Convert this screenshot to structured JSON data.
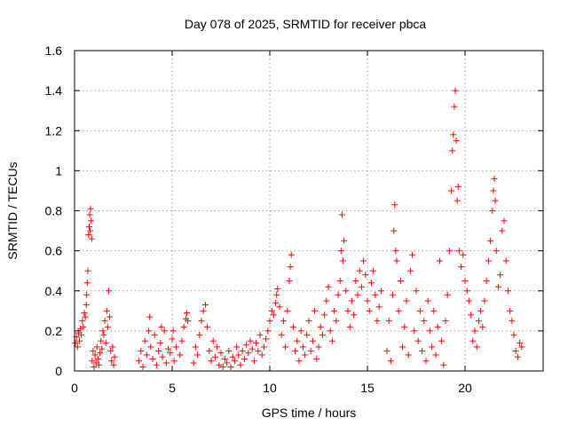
{
  "chart_data": {
    "type": "scatter",
    "title": "Day 078 of 2025, SRMTID for receiver pbca",
    "xlabel": "GPS time / hours",
    "ylabel": "SRMTID / TECUs",
    "xlim": [
      0,
      24
    ],
    "ylim": [
      0,
      1.6
    ],
    "x_ticks": [
      0,
      5,
      10,
      15,
      20
    ],
    "x_tick_labels": [
      "0",
      "5",
      "10",
      "15",
      "20"
    ],
    "y_ticks": [
      0,
      0.2,
      0.4,
      0.6,
      0.8,
      1.0,
      1.2,
      1.4,
      1.6
    ],
    "y_tick_labels": [
      "0",
      "0.2",
      "0.4",
      "0.6",
      "0.8",
      "1",
      "1.2",
      "1.4",
      "1.6"
    ],
    "grid": true,
    "marker": "+",
    "color": "#ff0000",
    "series": [
      {
        "name": "SRMTID",
        "points": [
          [
            0.05,
            0.14
          ],
          [
            0.1,
            0.17
          ],
          [
            0.15,
            0.12
          ],
          [
            0.2,
            0.19
          ],
          [
            0.25,
            0.15
          ],
          [
            0.3,
            0.21
          ],
          [
            0.35,
            0.18
          ],
          [
            0.4,
            0.25
          ],
          [
            0.45,
            0.22
          ],
          [
            0.5,
            0.29
          ],
          [
            0.55,
            0.27
          ],
          [
            0.6,
            0.33
          ],
          [
            0.62,
            0.38
          ],
          [
            0.65,
            0.44
          ],
          [
            0.68,
            0.5
          ],
          [
            0.72,
            0.68
          ],
          [
            0.75,
            0.72
          ],
          [
            0.78,
            0.78
          ],
          [
            0.8,
            0.7
          ],
          [
            0.82,
            0.81
          ],
          [
            0.85,
            0.75
          ],
          [
            0.88,
            0.66
          ],
          [
            0.9,
            0.05
          ],
          [
            0.95,
            0.1
          ],
          [
            1.0,
            0.02
          ],
          [
            1.05,
            0.08
          ],
          [
            1.1,
            0.04
          ],
          [
            1.15,
            0.12
          ],
          [
            1.2,
            0.06
          ],
          [
            1.25,
            0.03
          ],
          [
            1.3,
            0.09
          ],
          [
            1.35,
            0.15
          ],
          [
            1.4,
            0.11
          ],
          [
            1.45,
            0.2
          ],
          [
            1.5,
            0.18
          ],
          [
            1.55,
            0.25
          ],
          [
            1.6,
            0.14
          ],
          [
            1.65,
            0.3
          ],
          [
            1.7,
            0.22
          ],
          [
            1.75,
            0.4
          ],
          [
            1.8,
            0.27
          ],
          [
            1.85,
            0.1
          ],
          [
            1.9,
            0.05
          ],
          [
            1.95,
            0.12
          ],
          [
            2.0,
            0.03
          ],
          [
            2.05,
            0.07
          ],
          [
            3.3,
            0.05
          ],
          [
            3.4,
            0.1
          ],
          [
            3.5,
            0.02
          ],
          [
            3.6,
            0.15
          ],
          [
            3.7,
            0.08
          ],
          [
            3.8,
            0.2
          ],
          [
            3.9,
            0.12
          ],
          [
            4.0,
            0.06
          ],
          [
            4.1,
            0.18
          ],
          [
            4.2,
            0.03
          ],
          [
            4.3,
            0.1
          ],
          [
            4.4,
            0.14
          ],
          [
            4.5,
            0.07
          ],
          [
            4.6,
            0.2
          ],
          [
            4.7,
            0.04
          ],
          [
            4.8,
            0.11
          ],
          [
            4.9,
            0.09
          ],
          [
            5.0,
            0.16
          ],
          [
            5.1,
            0.05
          ],
          [
            5.2,
            0.12
          ],
          [
            3.85,
            0.27
          ],
          [
            4.45,
            0.22
          ],
          [
            5.05,
            0.2
          ],
          [
            5.4,
            0.08
          ],
          [
            5.5,
            0.15
          ],
          [
            5.6,
            0.22
          ],
          [
            5.7,
            0.26
          ],
          [
            5.75,
            0.29
          ],
          [
            5.8,
            0.25
          ],
          [
            6.1,
            0.04
          ],
          [
            6.2,
            0.12
          ],
          [
            6.3,
            0.08
          ],
          [
            6.4,
            0.18
          ],
          [
            6.5,
            0.25
          ],
          [
            6.6,
            0.3
          ],
          [
            6.7,
            0.33
          ],
          [
            6.8,
            0.22
          ],
          [
            6.9,
            0.1
          ],
          [
            7.0,
            0.05
          ],
          [
            7.1,
            0.15
          ],
          [
            7.2,
            0.07
          ],
          [
            7.3,
            0.12
          ],
          [
            7.4,
            0.03
          ],
          [
            7.5,
            0.09
          ],
          [
            7.6,
            0.02
          ],
          [
            7.7,
            0.06
          ],
          [
            7.8,
            0.04
          ],
          [
            7.9,
            0.1
          ],
          [
            8.0,
            0.02
          ],
          [
            8.1,
            0.07
          ],
          [
            8.2,
            0.05
          ],
          [
            8.3,
            0.12
          ],
          [
            8.4,
            0.08
          ],
          [
            8.5,
            0.03
          ],
          [
            8.6,
            0.1
          ],
          [
            8.7,
            0.06
          ],
          [
            8.8,
            0.13
          ],
          [
            8.9,
            0.09
          ],
          [
            9.0,
            0.15
          ],
          [
            9.1,
            0.11
          ],
          [
            9.2,
            0.05
          ],
          [
            9.3,
            0.14
          ],
          [
            9.4,
            0.1
          ],
          [
            9.5,
            0.18
          ],
          [
            9.6,
            0.08
          ],
          [
            9.7,
            0.12
          ],
          [
            9.8,
            0.16
          ],
          [
            9.9,
            0.2
          ],
          [
            10.0,
            0.25
          ],
          [
            10.1,
            0.3
          ],
          [
            10.2,
            0.28
          ],
          [
            10.3,
            0.34
          ],
          [
            10.35,
            0.38
          ],
          [
            10.4,
            0.41
          ],
          [
            10.5,
            0.32
          ],
          [
            10.6,
            0.18
          ],
          [
            10.7,
            0.25
          ],
          [
            10.8,
            0.12
          ],
          [
            10.9,
            0.3
          ],
          [
            11.0,
            0.45
          ],
          [
            11.05,
            0.52
          ],
          [
            11.1,
            0.58
          ],
          [
            11.2,
            0.22
          ],
          [
            11.3,
            0.1
          ],
          [
            11.4,
            0.15
          ],
          [
            11.5,
            0.05
          ],
          [
            11.6,
            0.2
          ],
          [
            11.7,
            0.12
          ],
          [
            11.8,
            0.08
          ],
          [
            11.9,
            0.18
          ],
          [
            12.0,
            0.25
          ],
          [
            12.1,
            0.1
          ],
          [
            12.2,
            0.15
          ],
          [
            12.3,
            0.3
          ],
          [
            12.4,
            0.06
          ],
          [
            12.5,
            0.12
          ],
          [
            12.6,
            0.22
          ],
          [
            12.7,
            0.18
          ],
          [
            12.8,
            0.28
          ],
          [
            12.9,
            0.35
          ],
          [
            13.0,
            0.42
          ],
          [
            13.1,
            0.2
          ],
          [
            13.2,
            0.15
          ],
          [
            13.3,
            0.3
          ],
          [
            13.4,
            0.25
          ],
          [
            13.5,
            0.38
          ],
          [
            13.6,
            0.45
          ],
          [
            13.65,
            0.6
          ],
          [
            13.7,
            0.78
          ],
          [
            13.75,
            0.55
          ],
          [
            13.8,
            0.65
          ],
          [
            13.9,
            0.4
          ],
          [
            14.0,
            0.3
          ],
          [
            14.1,
            0.22
          ],
          [
            14.2,
            0.35
          ],
          [
            14.3,
            0.28
          ],
          [
            14.4,
            0.45
          ],
          [
            14.5,
            0.38
          ],
          [
            14.6,
            0.5
          ],
          [
            14.7,
            0.42
          ],
          [
            14.8,
            0.55
          ],
          [
            14.9,
            0.48
          ],
          [
            15.0,
            0.35
          ],
          [
            15.1,
            0.3
          ],
          [
            15.2,
            0.44
          ],
          [
            15.3,
            0.5
          ],
          [
            15.4,
            0.38
          ],
          [
            15.5,
            0.25
          ],
          [
            15.6,
            0.32
          ],
          [
            15.7,
            0.4
          ],
          [
            16.0,
            0.1
          ],
          [
            16.1,
            0.25
          ],
          [
            16.2,
            0.05
          ],
          [
            16.3,
            0.38
          ],
          [
            16.35,
            0.7
          ],
          [
            16.4,
            0.83
          ],
          [
            16.45,
            0.6
          ],
          [
            16.5,
            0.55
          ],
          [
            16.6,
            0.3
          ],
          [
            16.7,
            0.45
          ],
          [
            16.8,
            0.12
          ],
          [
            16.9,
            0.22
          ],
          [
            17.0,
            0.35
          ],
          [
            17.1,
            0.08
          ],
          [
            17.2,
            0.5
          ],
          [
            17.3,
            0.58
          ],
          [
            17.4,
            0.2
          ],
          [
            17.5,
            0.4
          ],
          [
            17.6,
            0.15
          ],
          [
            17.7,
            0.3
          ],
          [
            17.8,
            0.1
          ],
          [
            17.9,
            0.25
          ],
          [
            18.0,
            0.05
          ],
          [
            18.1,
            0.35
          ],
          [
            18.2,
            0.2
          ],
          [
            18.3,
            0.12
          ],
          [
            18.4,
            0.3
          ],
          [
            18.5,
            0.08
          ],
          [
            18.6,
            0.22
          ],
          [
            18.7,
            0.55
          ],
          [
            18.8,
            0.15
          ],
          [
            18.9,
            0.03
          ],
          [
            19.0,
            0.25
          ],
          [
            19.1,
            0.38
          ],
          [
            19.2,
            0.6
          ],
          [
            19.3,
            0.9
          ],
          [
            19.35,
            1.1
          ],
          [
            19.4,
            1.18
          ],
          [
            19.45,
            1.32
          ],
          [
            19.5,
            1.4
          ],
          [
            19.55,
            1.15
          ],
          [
            19.6,
            0.85
          ],
          [
            19.65,
            0.92
          ],
          [
            19.7,
            0.6
          ],
          [
            19.8,
            0.52
          ],
          [
            19.9,
            0.58
          ],
          [
            20.0,
            0.45
          ],
          [
            20.1,
            0.4
          ],
          [
            20.2,
            0.35
          ],
          [
            20.3,
            0.28
          ],
          [
            20.4,
            0.15
          ],
          [
            20.5,
            0.2
          ],
          [
            20.6,
            0.12
          ],
          [
            20.7,
            0.25
          ],
          [
            20.8,
            0.3
          ],
          [
            20.9,
            0.22
          ],
          [
            21.0,
            0.35
          ],
          [
            21.1,
            0.45
          ],
          [
            21.2,
            0.55
          ],
          [
            21.3,
            0.65
          ],
          [
            21.4,
            0.8
          ],
          [
            21.45,
            0.9
          ],
          [
            21.5,
            0.96
          ],
          [
            21.55,
            0.85
          ],
          [
            21.6,
            0.6
          ],
          [
            21.7,
            0.42
          ],
          [
            21.8,
            0.48
          ],
          [
            21.9,
            0.7
          ],
          [
            22.0,
            0.75
          ],
          [
            22.1,
            0.55
          ],
          [
            22.2,
            0.4
          ],
          [
            22.3,
            0.3
          ],
          [
            22.4,
            0.25
          ],
          [
            22.5,
            0.18
          ],
          [
            22.6,
            0.1
          ],
          [
            22.7,
            0.07
          ],
          [
            22.8,
            0.14
          ],
          [
            22.9,
            0.12
          ]
        ]
      }
    ]
  }
}
